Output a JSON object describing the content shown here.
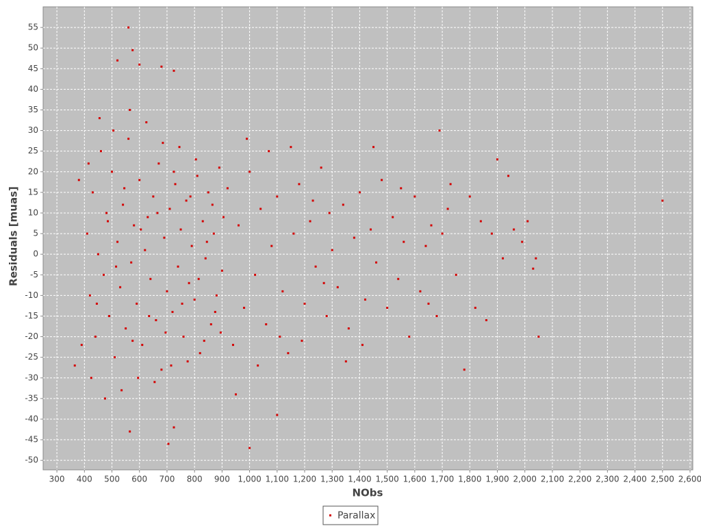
{
  "chart_data": {
    "type": "scatter",
    "x_label": "NObs",
    "y_label": "Residuals [muas]",
    "xlim": [
      250,
      2610
    ],
    "ylim": [
      -52.3,
      60
    ],
    "xticks": [
      300,
      400,
      500,
      600,
      700,
      800,
      900,
      {
        "value": 1000,
        "label": "1,000"
      },
      {
        "value": 1100,
        "label": "1,100"
      },
      {
        "value": 1200,
        "label": "1,200"
      },
      {
        "value": 1300,
        "label": "1,300"
      },
      {
        "value": 1400,
        "label": "1,400"
      },
      {
        "value": 1500,
        "label": "1,500"
      },
      {
        "value": 1600,
        "label": "1,600"
      },
      {
        "value": 1700,
        "label": "1,700"
      },
      {
        "value": 1800,
        "label": "1,800"
      },
      {
        "value": 1900,
        "label": "1,900"
      },
      {
        "value": 2000,
        "label": "2,000"
      },
      {
        "value": 2100,
        "label": "2,100"
      },
      {
        "value": 2200,
        "label": "2,200"
      },
      {
        "value": 2300,
        "label": "2,300"
      },
      {
        "value": 2400,
        "label": "2,400"
      },
      {
        "value": 2500,
        "label": "2,500"
      },
      {
        "value": 2600,
        "label": "2,600"
      }
    ],
    "yticks": [
      -50,
      -45,
      -40,
      -35,
      -30,
      -25,
      -20,
      -15,
      -10,
      -5,
      0,
      5,
      10,
      15,
      20,
      25,
      30,
      35,
      40,
      45,
      50,
      55
    ],
    "grid": true,
    "legend": "bottom",
    "series": [
      {
        "name": "Parallax",
        "color": "#d40000",
        "x": [
          410,
          420,
          430,
          440,
          450,
          460,
          470,
          480,
          490,
          500,
          510,
          520,
          530,
          540,
          550,
          560,
          570,
          580,
          590,
          600,
          610,
          620,
          630,
          640,
          650,
          660,
          670,
          680,
          690,
          700,
          710,
          720,
          730,
          740,
          750,
          760,
          770,
          780,
          790,
          800,
          810,
          820,
          830,
          840,
          850,
          860,
          870,
          880,
          890,
          900,
          425,
          455,
          475,
          505,
          535,
          565,
          595,
          625,
          655,
          685,
          715,
          745,
          775,
          805,
          835,
          865,
          895,
          415,
          445,
          485,
          515,
          545,
          575,
          605,
          635,
          665,
          695,
          725,
          755,
          785,
          815,
          845,
          875,
          905,
          920,
          940,
          960,
          980,
          1000,
          1020,
          1040,
          1060,
          1080,
          1100,
          1120,
          1140,
          1160,
          1180,
          1200,
          1220,
          1240,
          1260,
          1280,
          1300,
          950,
          990,
          1030,
          1070,
          1110,
          1150,
          1190,
          1230,
          1270,
          1290,
          1320,
          1340,
          1360,
          1380,
          1400,
          1420,
          1440,
          1460,
          1480,
          1500,
          1520,
          1540,
          1560,
          1580,
          1600,
          1620,
          1640,
          1660,
          1680,
          1700,
          1450,
          1350,
          1410,
          1550,
          1650,
          1720,
          1750,
          1780,
          1800,
          1820,
          1840,
          1860,
          1880,
          1900,
          1920,
          1940,
          1960,
          1990,
          2010,
          2030,
          2050,
          2040,
          1690,
          1730,
          560,
          575,
          520,
          600,
          680,
          725,
          2500,
          1000,
          705,
          1100,
          365,
          565,
          725,
          380,
          390
        ],
        "values": [
          5,
          -10,
          15,
          -20,
          0,
          25,
          -5,
          10,
          -15,
          20,
          -25,
          3,
          -8,
          12,
          -18,
          28,
          -2,
          7,
          -12,
          18,
          -22,
          1,
          9,
          -6,
          14,
          -16,
          22,
          -28,
          4,
          -9,
          11,
          -14,
          17,
          -3,
          6,
          -20,
          13,
          -7,
          2,
          -11,
          19,
          -24,
          8,
          -1,
          15,
          -17,
          5,
          -10,
          21,
          -4,
          -30,
          33,
          -35,
          30,
          -33,
          35,
          -30,
          32,
          -31,
          27,
          -27,
          26,
          -26,
          23,
          -21,
          12,
          -19,
          22,
          -12,
          8,
          -3,
          16,
          -21,
          6,
          -15,
          10,
          -19,
          20,
          -12,
          14,
          -6,
          3,
          -14,
          9,
          16,
          -22,
          7,
          -13,
          20,
          -5,
          11,
          -17,
          2,
          14,
          -9,
          -24,
          5,
          17,
          -12,
          8,
          -3,
          21,
          -15,
          1,
          -34,
          28,
          -27,
          25,
          -20,
          26,
          -21,
          13,
          -7,
          10,
          -8,
          12,
          -18,
          4,
          15,
          -11,
          6,
          -2,
          18,
          -13,
          9,
          -6,
          3,
          -20,
          14,
          -9,
          2,
          7,
          -15,
          5,
          26,
          -26,
          -22,
          16,
          -12,
          11,
          -5,
          -28,
          14,
          -13,
          8,
          -16,
          5,
          23,
          -1,
          19,
          6,
          3,
          8,
          -3.5,
          -20,
          -1,
          30,
          17,
          55,
          49.5,
          47,
          46,
          45.5,
          44.5,
          13,
          -47,
          -46,
          -39,
          -27,
          -43,
          -42,
          18,
          -22
        ]
      }
    ]
  }
}
